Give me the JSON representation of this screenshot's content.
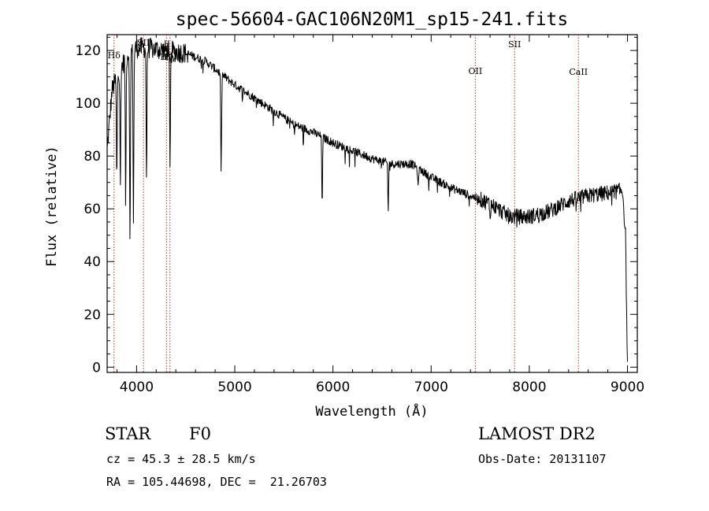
{
  "chart_data": {
    "type": "line",
    "title": "spec-56604-GAC106N20M1_sp15-241.fits",
    "xlabel": "Wavelength (Å)",
    "ylabel": "Flux (relative)",
    "xlim": [
      3700,
      9100
    ],
    "ylim": [
      -2,
      126
    ],
    "xticks": [
      4000,
      5000,
      6000,
      7000,
      8000,
      9000
    ],
    "yticks": [
      0,
      20,
      40,
      60,
      80,
      100,
      120
    ],
    "grid": false,
    "line_color": "#000000",
    "marker_color": "#b03030",
    "lines": [
      {
        "label": "Hδ",
        "x": 3770
      },
      {
        "label": "SII",
        "x": 4070
      },
      {
        "label": "Hγ",
        "x": 4305
      },
      {
        "label": "Hγ",
        "x": 4340
      },
      {
        "label": "OII",
        "x": 7450
      },
      {
        "label": "SII",
        "x": 7850
      },
      {
        "label": "CaII",
        "x": 8500
      }
    ],
    "absorptions": [
      {
        "x": 3798,
        "depth": 40
      },
      {
        "x": 3835,
        "depth": 45
      },
      {
        "x": 3889,
        "depth": 55
      },
      {
        "x": 3933,
        "depth": 75
      },
      {
        "x": 3968,
        "depth": 65
      },
      {
        "x": 4101,
        "depth": 50
      },
      {
        "x": 4340,
        "depth": 45
      },
      {
        "x": 4861,
        "depth": 38
      },
      {
        "x": 5890,
        "depth": 25
      },
      {
        "x": 6563,
        "depth": 18
      },
      {
        "x": 6867,
        "depth": 8
      },
      {
        "x": 7600,
        "depth": 5
      }
    ],
    "continuum": [
      {
        "x": 3700,
        "y": 82
      },
      {
        "x": 3750,
        "y": 105
      },
      {
        "x": 3800,
        "y": 110
      },
      {
        "x": 3900,
        "y": 118
      },
      {
        "x": 4000,
        "y": 121
      },
      {
        "x": 4100,
        "y": 121
      },
      {
        "x": 4300,
        "y": 120
      },
      {
        "x": 4500,
        "y": 119
      },
      {
        "x": 4700,
        "y": 116
      },
      {
        "x": 4900,
        "y": 110
      },
      {
        "x": 5000,
        "y": 107
      },
      {
        "x": 5200,
        "y": 102
      },
      {
        "x": 5400,
        "y": 97
      },
      {
        "x": 5600,
        "y": 92
      },
      {
        "x": 5800,
        "y": 89
      },
      {
        "x": 6000,
        "y": 85
      },
      {
        "x": 6200,
        "y": 82
      },
      {
        "x": 6400,
        "y": 79
      },
      {
        "x": 6600,
        "y": 77
      },
      {
        "x": 6800,
        "y": 77
      },
      {
        "x": 7000,
        "y": 72
      },
      {
        "x": 7200,
        "y": 68
      },
      {
        "x": 7400,
        "y": 65
      },
      {
        "x": 7600,
        "y": 62
      },
      {
        "x": 7800,
        "y": 57
      },
      {
        "x": 8000,
        "y": 57
      },
      {
        "x": 8200,
        "y": 59
      },
      {
        "x": 8400,
        "y": 63
      },
      {
        "x": 8600,
        "y": 65
      },
      {
        "x": 8800,
        "y": 66
      },
      {
        "x": 8950,
        "y": 67
      },
      {
        "x": 8980,
        "y": 50
      },
      {
        "x": 9000,
        "y": 0
      }
    ]
  },
  "info": {
    "object_class": "STAR",
    "subclass": "F0",
    "survey": "LAMOST DR2",
    "redshift": "cz = 45.3 ± 28.5 km/s",
    "obs_date": "Obs-Date: 20131107",
    "coords": "RA = 105.44698, DEC =  21.26703"
  }
}
